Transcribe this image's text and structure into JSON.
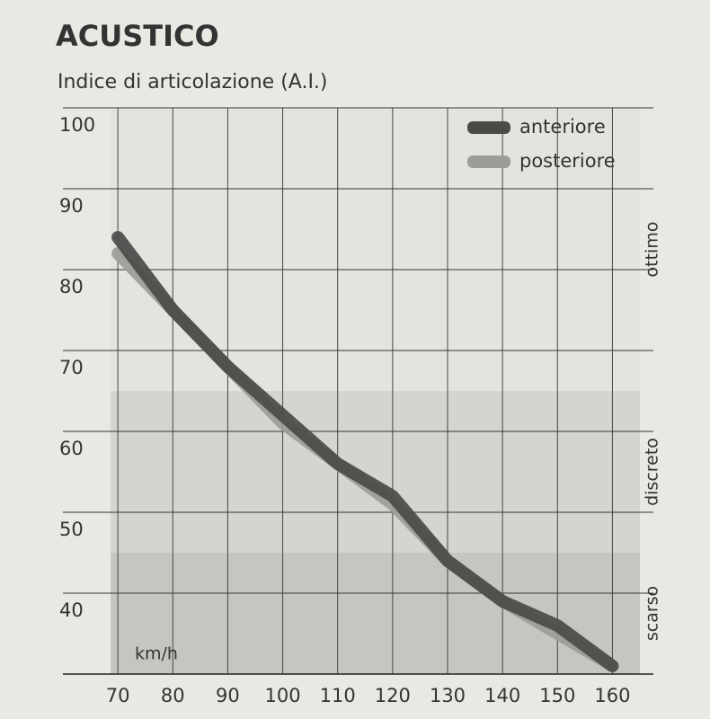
{
  "chart_data": {
    "type": "line",
    "title": "ACUSTICO",
    "subtitle": "Indice di articolazione (A.I.)",
    "x_unit_label": "km/h",
    "x": [
      70,
      80,
      90,
      100,
      110,
      120,
      130,
      140,
      150,
      160
    ],
    "xlim": [
      60,
      165
    ],
    "xticks": [
      70,
      80,
      90,
      100,
      110,
      120,
      130,
      140,
      150,
      160
    ],
    "ylim": [
      30,
      100
    ],
    "yticks": [
      100,
      90,
      80,
      70,
      60,
      50,
      40
    ],
    "grid": true,
    "legend_position": "upper right",
    "zones": [
      {
        "label": "ottimo",
        "from": 65,
        "to": 100,
        "color": "#e4e4df"
      },
      {
        "label": "discreto",
        "from": 45,
        "to": 65,
        "color": "#d5d5d0"
      },
      {
        "label": "scarso",
        "from": 30,
        "to": 45,
        "color": "#c6c6c1"
      }
    ],
    "series": [
      {
        "name": "posteriore",
        "color": "#9c9c98",
        "values": [
          82,
          75,
          68,
          61,
          56,
          51,
          44,
          39,
          35,
          31
        ]
      },
      {
        "name": "anteriore",
        "color": "#4a4a48",
        "values": [
          84,
          75,
          68,
          62,
          56,
          52,
          44,
          39,
          36,
          31
        ]
      }
    ]
  }
}
